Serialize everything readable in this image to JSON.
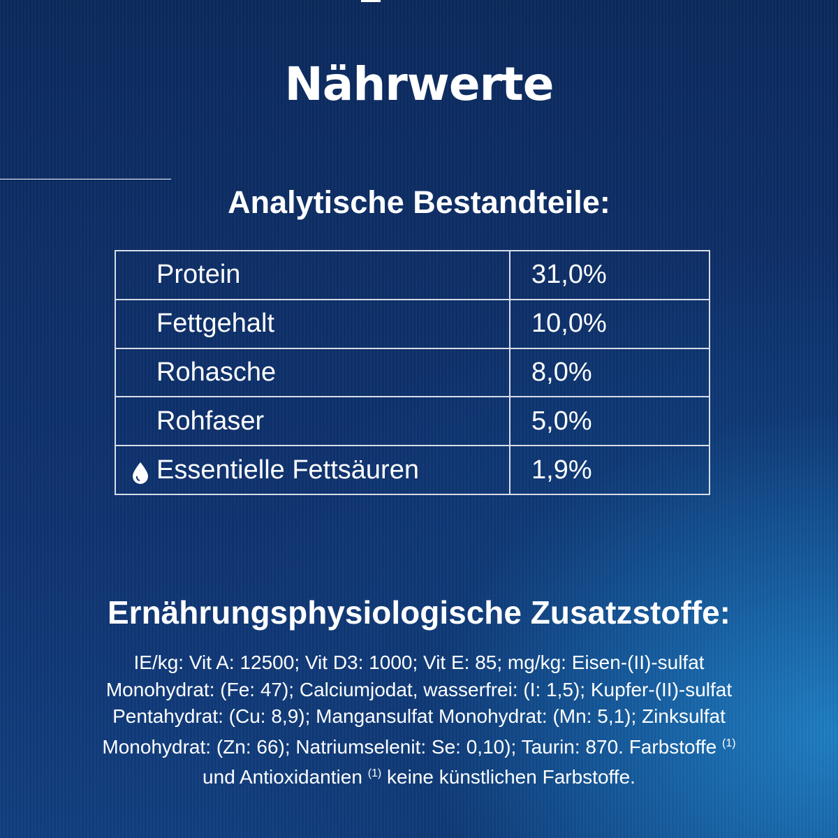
{
  "title": "Nährwerte",
  "subtitle": "Analytische Bestandteile:",
  "table": {
    "rows": [
      [
        "Protein",
        "31,0%"
      ],
      [
        "Fettgehalt",
        "10,0%"
      ],
      [
        "Rohasche",
        "8,0%"
      ],
      [
        "Rohfaser",
        "5,0%"
      ],
      [
        "Essentielle Fettsäuren",
        "1,9%"
      ]
    ]
  },
  "additives": {
    "heading": "Ernährungsphysiologische Zusatzstoffe:",
    "lines": [
      [
        {
          "text": "IE/kg: Vit A: 12500; Vit D3: 1000; Vit E: 85; mg/kg: Eisen-(II)-sulfat"
        }
      ],
      [
        {
          "text": "Monohydrat: (Fe: 47); Calciumjodat, wasserfrei: (I: 1,5); Kupfer-(II)-sulfat"
        }
      ],
      [
        {
          "text": "Pentahydrat: (Cu: 8,9); Mangansulfat Monohydrat: (Mn: 5,1); Zinksulfat"
        }
      ],
      [
        {
          "text": "Monohydrat: (Zn: 66); Natriumselenit: Se: 0,10); Taurin: 870. Farbstoffe "
        },
        {
          "sup": "(1)"
        }
      ],
      [
        {
          "text": "und Antioxidantien "
        },
        {
          "sup": "(1)"
        },
        {
          "text": " keine künstlichen Farbstoffe."
        }
      ]
    ]
  }
}
